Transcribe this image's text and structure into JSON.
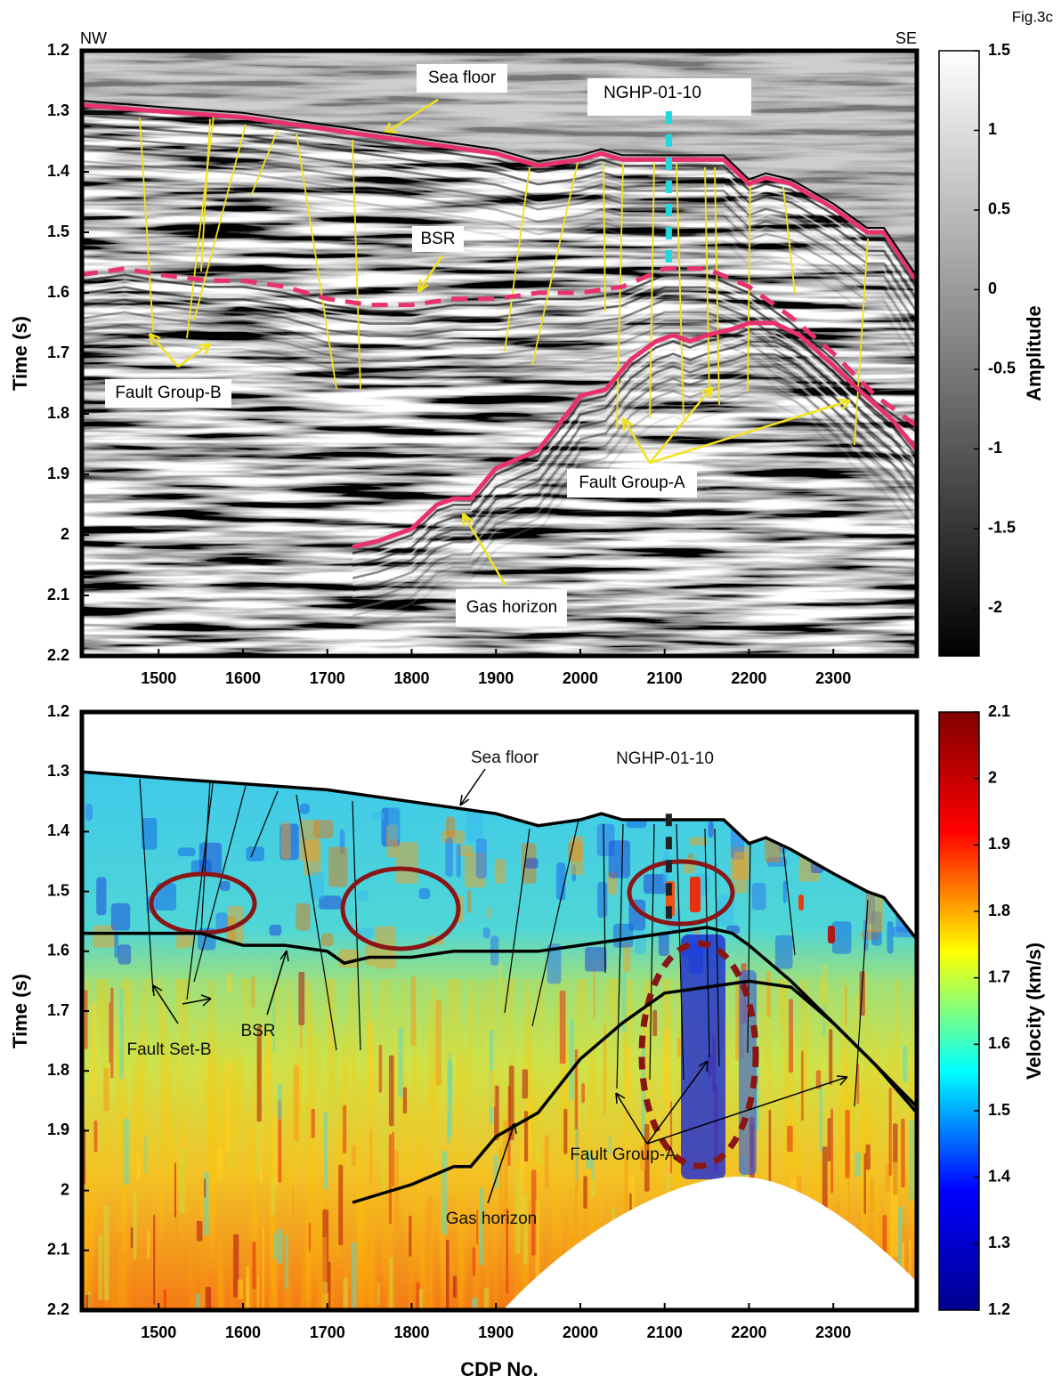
{
  "figure_label": "Fig.3c",
  "chart_data": [
    {
      "type": "seismic",
      "direction_labels": [
        "NW",
        "SE"
      ],
      "ylabel": "Time (s)",
      "xlim": [
        1409,
        2399
      ],
      "xticks": [
        1500,
        1600,
        1700,
        1800,
        1900,
        2000,
        2100,
        2200,
        2300
      ],
      "ylim": [
        1.2,
        2.2
      ],
      "y_inverted": true,
      "yticks": [
        1.2,
        1.3,
        1.4,
        1.5,
        1.6,
        1.7,
        1.8,
        1.9,
        2,
        2.1,
        2.2
      ],
      "colorbar": {
        "label": "Amplitude",
        "colors": [
          "#000000",
          "#ffffff"
        ],
        "zlim": [
          -2.3,
          1.5
        ],
        "zticks": [
          1.5,
          1,
          0.5,
          0,
          -0.5,
          -1,
          -1.5,
          -2
        ]
      },
      "series": [
        {
          "name": "Sea floor",
          "color": "#e8326c",
          "dashed": false,
          "x": [
            1409,
            1500,
            1600,
            1700,
            1800,
            1900,
            1950,
            2000,
            2025,
            2050,
            2100,
            2170,
            2200,
            2220,
            2250,
            2300,
            2340,
            2360,
            2399
          ],
          "values": [
            1.29,
            1.3,
            1.31,
            1.33,
            1.35,
            1.37,
            1.39,
            1.38,
            1.37,
            1.38,
            1.38,
            1.38,
            1.42,
            1.41,
            1.42,
            1.46,
            1.5,
            1.5,
            1.58
          ]
        },
        {
          "name": "BSR",
          "color": "#e8326c",
          "dashed": true,
          "x": [
            1409,
            1460,
            1500,
            1560,
            1600,
            1650,
            1700,
            1750,
            1800,
            1850,
            1900,
            1950,
            2000,
            2050,
            2100,
            2150,
            2200,
            2250,
            2300,
            2350,
            2399
          ],
          "values": [
            1.57,
            1.56,
            1.57,
            1.58,
            1.58,
            1.59,
            1.61,
            1.62,
            1.62,
            1.61,
            1.61,
            1.6,
            1.6,
            1.59,
            1.56,
            1.56,
            1.59,
            1.64,
            1.7,
            1.77,
            1.82
          ]
        },
        {
          "name": "Gas horizon",
          "color": "#e8326c",
          "dashed": false,
          "x": [
            1730,
            1760,
            1800,
            1830,
            1850,
            1870,
            1900,
            1950,
            1990,
            2000,
            2030,
            2060,
            2090,
            2110,
            2130,
            2150,
            2180,
            2200,
            2230,
            2260,
            2300,
            2330,
            2370,
            2399
          ],
          "values": [
            2.02,
            2.01,
            1.99,
            1.95,
            1.94,
            1.94,
            1.89,
            1.86,
            1.79,
            1.77,
            1.76,
            1.71,
            1.68,
            1.67,
            1.68,
            1.67,
            1.66,
            1.65,
            1.65,
            1.67,
            1.72,
            1.76,
            1.81,
            1.86
          ]
        },
        {
          "name": "NGHP-01-10",
          "color": "#22d8e0",
          "dashed": true,
          "x": [
            2105,
            2105
          ],
          "values": [
            1.3,
            1.56
          ]
        }
      ],
      "annotations": [
        "Fault Group-B",
        "Fault Group-A"
      ]
    },
    {
      "type": "velocity",
      "ylabel": "Time (s)",
      "xlabel": "CDP No.",
      "xlim": [
        1409,
        2399
      ],
      "xticks": [
        1500,
        1600,
        1700,
        1800,
        1900,
        2000,
        2100,
        2200,
        2300
      ],
      "ylim": [
        1.2,
        2.2
      ],
      "y_inverted": true,
      "yticks": [
        1.2,
        1.3,
        1.4,
        1.5,
        1.6,
        1.7,
        1.8,
        1.9,
        2,
        2.1,
        2.2
      ],
      "colorbar": {
        "label": "Velocity (km/s)",
        "colors": [
          "#00008f",
          "#0000ff",
          "#00ffff",
          "#ffff00",
          "#ff0000",
          "#800000"
        ],
        "zlim": [
          1.2,
          2.1
        ],
        "zticks": [
          2.1,
          2,
          1.9,
          1.8,
          1.7,
          1.6,
          1.5,
          1.4,
          1.3,
          1.2
        ]
      },
      "series": [
        {
          "name": "Sea floor",
          "color": "#000000",
          "dashed": false,
          "x": [
            1409,
            1500,
            1600,
            1700,
            1800,
            1900,
            1950,
            2000,
            2025,
            2050,
            2100,
            2170,
            2200,
            2220,
            2250,
            2300,
            2340,
            2360,
            2399
          ],
          "values": [
            1.3,
            1.31,
            1.32,
            1.33,
            1.35,
            1.37,
            1.39,
            1.38,
            1.37,
            1.38,
            1.38,
            1.38,
            1.42,
            1.41,
            1.43,
            1.47,
            1.5,
            1.51,
            1.58
          ]
        },
        {
          "name": "BSR",
          "color": "#000000",
          "dashed": false,
          "x": [
            1409,
            1450,
            1500,
            1550,
            1600,
            1650,
            1700,
            1720,
            1750,
            1800,
            1850,
            1900,
            1950,
            2000,
            2050,
            2100,
            2150,
            2180,
            2200,
            2250,
            2300,
            2350,
            2399
          ],
          "values": [
            1.57,
            1.57,
            1.57,
            1.57,
            1.59,
            1.59,
            1.6,
            1.62,
            1.61,
            1.61,
            1.6,
            1.6,
            1.6,
            1.59,
            1.58,
            1.57,
            1.56,
            1.57,
            1.59,
            1.65,
            1.72,
            1.79,
            1.87
          ]
        },
        {
          "name": "Gas horizon",
          "color": "#000000",
          "dashed": false,
          "x": [
            1730,
            1800,
            1850,
            1870,
            1900,
            1950,
            2000,
            2050,
            2100,
            2150,
            2200,
            2250,
            2300,
            2350,
            2399
          ],
          "values": [
            2.02,
            1.99,
            1.96,
            1.96,
            1.91,
            1.87,
            1.78,
            1.72,
            1.67,
            1.66,
            1.65,
            1.66,
            1.72,
            1.79,
            1.86
          ]
        },
        {
          "name": "NGHP-01-10",
          "color": "#222222",
          "dashed": true,
          "x": [
            2105,
            2105
          ],
          "values": [
            1.37,
            1.56
          ]
        }
      ],
      "annotations": [
        "Fault Set-B",
        "Fault Group-A"
      ]
    }
  ]
}
